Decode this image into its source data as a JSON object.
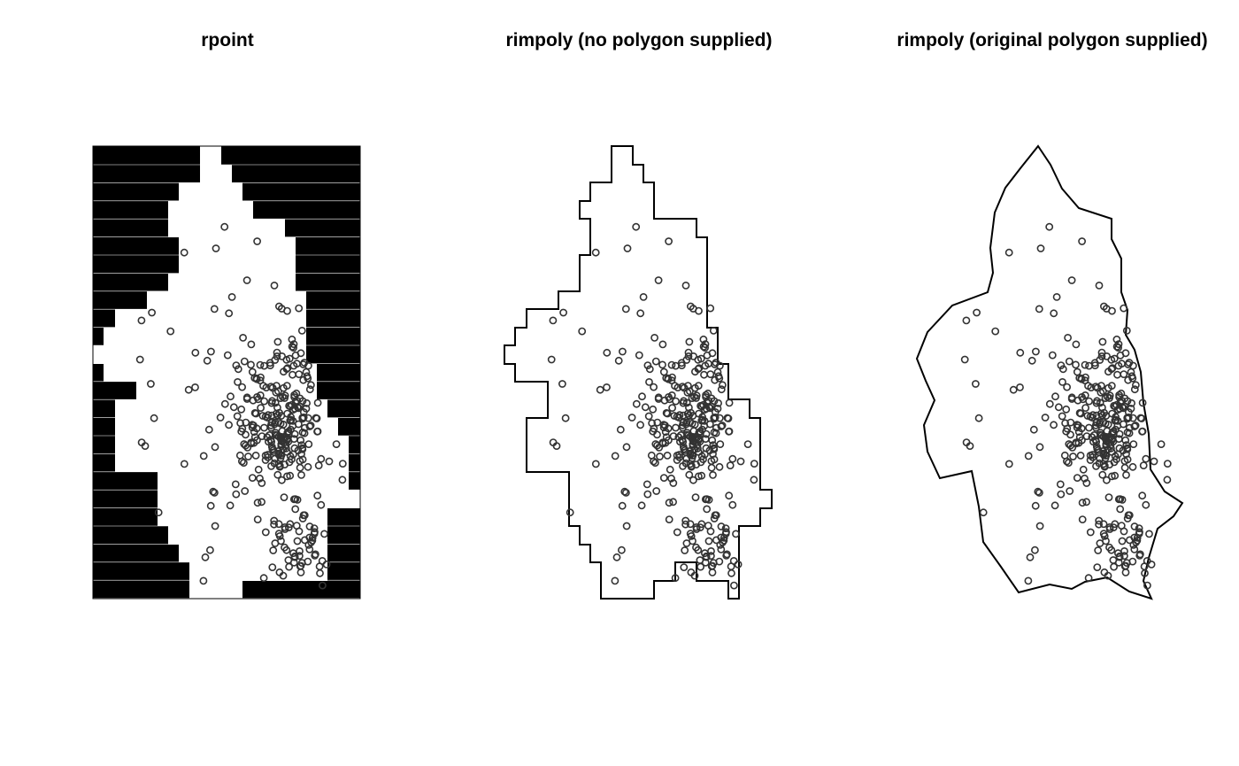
{
  "colors": {
    "background": "#ffffff",
    "ink": "#000000",
    "points": "#333333"
  },
  "chart_data": [
    {
      "type": "scatter",
      "title": "rpoint",
      "window": "pixel image mask (black = outside window, white = inside)",
      "grid": false,
      "legend": "none",
      "xlabel": "",
      "ylabel": ""
    },
    {
      "type": "scatter",
      "title": "rimpoly (no polygon supplied)",
      "window": "stepped polygon",
      "grid": false,
      "legend": "none",
      "xlabel": "",
      "ylabel": ""
    },
    {
      "type": "scatter",
      "title": "rimpoly (original polygon supplied)",
      "window": "original smooth polygon",
      "grid": false,
      "legend": "none",
      "xlabel": "",
      "ylabel": ""
    }
  ]
}
